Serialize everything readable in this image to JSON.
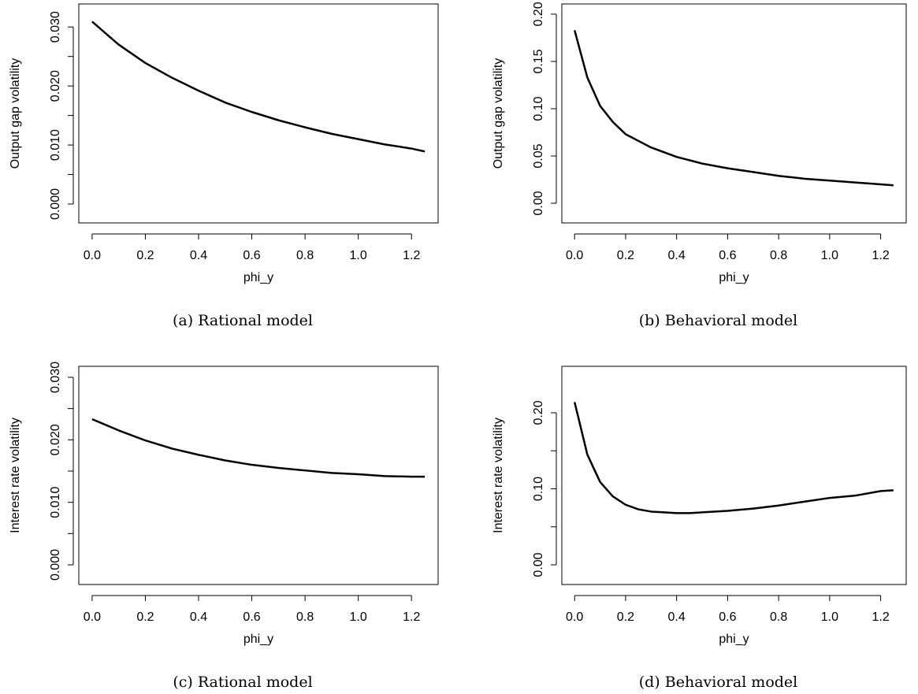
{
  "chart_data": [
    {
      "type": "line",
      "caption": "(a) Rational model",
      "xlabel": "phi_y",
      "ylabel": "Output gap volatility",
      "x": [
        0,
        0.1,
        0.2,
        0.3,
        0.4,
        0.5,
        0.6,
        0.7,
        0.8,
        0.9,
        1.0,
        1.1,
        1.2,
        1.25
      ],
      "series": [
        {
          "color": "#000000",
          "values": [
            0.0309,
            0.027,
            0.0239,
            0.0214,
            0.0192,
            0.0172,
            0.0156,
            0.0142,
            0.013,
            0.0119,
            0.011,
            0.0101,
            0.0094,
            0.0089
          ]
        }
      ],
      "xlim": [
        -0.05,
        1.3
      ],
      "ylim": [
        -0.0032,
        0.0339
      ],
      "xticks": [
        {
          "value": 0,
          "label": "0.0"
        },
        0.2,
        0.4,
        0.6,
        0.8,
        {
          "value": 1,
          "label": "1.0"
        },
        1.2
      ],
      "yticks": [
        {
          "value": 0,
          "label": "0.000"
        },
        {
          "value": 0.01,
          "label": "0.010"
        },
        {
          "value": 0.02,
          "label": "0.020"
        },
        {
          "value": 0.03,
          "label": "0.030"
        }
      ],
      "minor_yticks": [
        0.005,
        0.015,
        0.025
      ]
    },
    {
      "type": "line",
      "caption": "(b) Behavioral model",
      "xlabel": "phi_y",
      "ylabel": "Output gap volatility",
      "x": [
        0,
        0.05,
        0.1,
        0.15,
        0.2,
        0.25,
        0.3,
        0.35,
        0.4,
        0.5,
        0.6,
        0.7,
        0.8,
        0.9,
        1.0,
        1.1,
        1.2,
        1.25
      ],
      "series": [
        {
          "color": "#000000",
          "values": [
            0.183,
            0.133,
            0.103,
            0.086,
            0.073,
            0.066,
            0.059,
            0.054,
            0.049,
            0.042,
            0.037,
            0.033,
            0.029,
            0.026,
            0.024,
            0.022,
            0.02,
            0.019
          ]
        }
      ],
      "xlim": [
        -0.05,
        1.3
      ],
      "ylim": [
        -0.0208,
        0.2108
      ],
      "xticks": [
        {
          "value": 0,
          "label": "0.0"
        },
        0.2,
        0.4,
        0.6,
        0.8,
        {
          "value": 1,
          "label": "1.0"
        },
        1.2
      ],
      "yticks": [
        {
          "value": 0,
          "label": "0.00"
        },
        0.05,
        {
          "value": 0.1,
          "label": "0.10"
        },
        0.15,
        {
          "value": 0.2,
          "label": "0.20"
        }
      ],
      "minor_yticks": []
    },
    {
      "type": "line",
      "caption": "(c) Rational model",
      "xlabel": "phi_y",
      "ylabel": "Interest rate volatility",
      "x": [
        0,
        0.1,
        0.2,
        0.3,
        0.4,
        0.5,
        0.6,
        0.7,
        0.8,
        0.9,
        1.0,
        1.1,
        1.2,
        1.25
      ],
      "series": [
        {
          "color": "#000000",
          "values": [
            0.0233,
            0.0215,
            0.0199,
            0.0186,
            0.0176,
            0.0167,
            0.016,
            0.0155,
            0.0151,
            0.0147,
            0.0145,
            0.0142,
            0.0141,
            0.0141
          ]
        }
      ],
      "xlim": [
        -0.05,
        1.3
      ],
      "ylim": [
        -0.00315,
        0.03176
      ],
      "xticks": [
        {
          "value": 0,
          "label": "0.0"
        },
        0.2,
        0.4,
        0.6,
        0.8,
        {
          "value": 1,
          "label": "1.0"
        },
        1.2
      ],
      "yticks": [
        {
          "value": 0,
          "label": "0.000"
        },
        {
          "value": 0.01,
          "label": "0.010"
        },
        {
          "value": 0.02,
          "label": "0.020"
        },
        {
          "value": 0.03,
          "label": "0.030"
        }
      ],
      "minor_yticks": [
        0.005,
        0.015,
        0.025
      ]
    },
    {
      "type": "line",
      "caption": "(d) Behavioral model",
      "xlabel": "phi_y",
      "ylabel": "Interest rate volatility",
      "x": [
        0,
        0.05,
        0.1,
        0.15,
        0.2,
        0.25,
        0.3,
        0.35,
        0.4,
        0.45,
        0.5,
        0.6,
        0.7,
        0.8,
        0.9,
        1.0,
        1.1,
        1.2,
        1.25
      ],
      "series": [
        {
          "color": "#000000",
          "values": [
            0.214,
            0.145,
            0.109,
            0.09,
            0.079,
            0.073,
            0.07,
            0.069,
            0.068,
            0.068,
            0.069,
            0.071,
            0.074,
            0.078,
            0.083,
            0.088,
            0.091,
            0.097,
            0.098
          ]
        }
      ],
      "xlim": [
        -0.05,
        1.3
      ],
      "ylim": [
        -0.0259,
        0.2611
      ],
      "xticks": [
        {
          "value": 0,
          "label": "0.0"
        },
        0.2,
        0.4,
        0.6,
        0.8,
        {
          "value": 1,
          "label": "1.0"
        },
        1.2
      ],
      "yticks": [
        {
          "value": 0,
          "label": "0.00"
        },
        {
          "value": 0.1,
          "label": "0.10"
        },
        {
          "value": 0.2,
          "label": "0.20"
        }
      ],
      "minor_yticks": [
        0.05,
        0.15
      ]
    }
  ]
}
